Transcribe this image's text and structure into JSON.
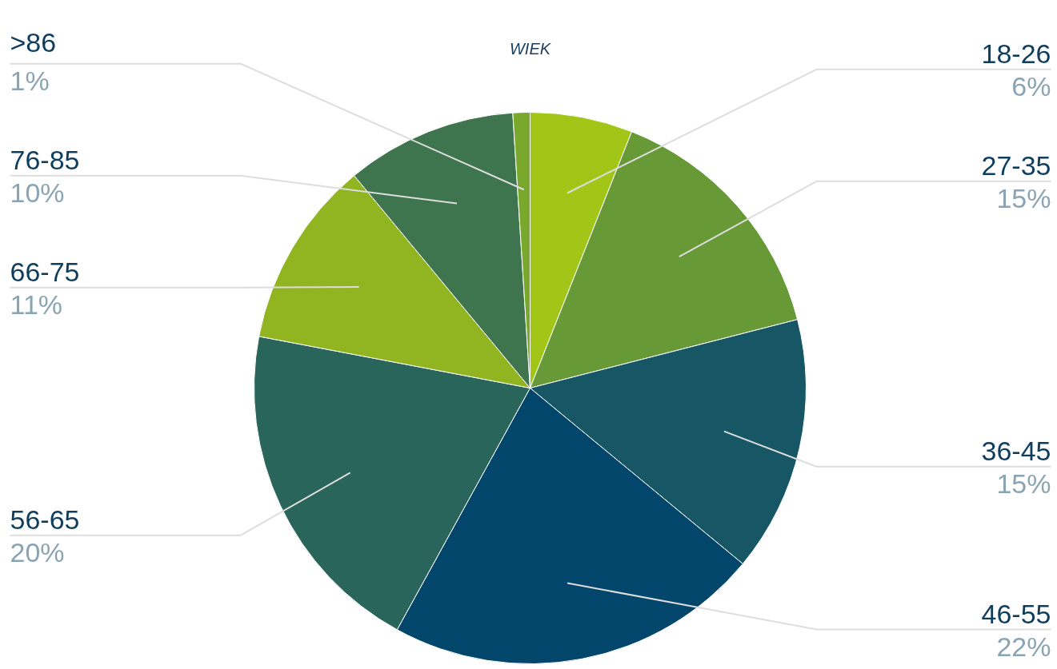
{
  "chart_data": {
    "type": "pie",
    "title": "WIEK",
    "categories": [
      "18-26",
      "27-35",
      "36-45",
      "46-55",
      "56-65",
      "66-75",
      "76-85",
      ">86"
    ],
    "values": [
      6,
      15,
      15,
      22,
      20,
      11,
      10,
      1
    ],
    "colors": [
      "#a2c617",
      "#679936",
      "#175665",
      "#02466b",
      "#29655a",
      "#91b520",
      "#3e754e",
      "#7aa82c"
    ],
    "value_labels": [
      "6%",
      "15%",
      "15%",
      "22%",
      "20%",
      "11%",
      "10%",
      "1%"
    ]
  }
}
